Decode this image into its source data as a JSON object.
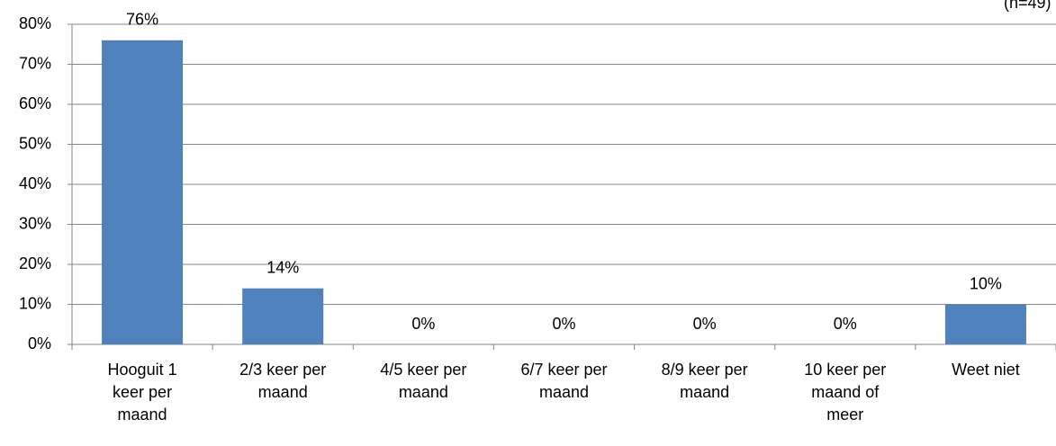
{
  "chart_data": {
    "type": "bar",
    "annotation": "(n=49)",
    "categories": [
      "Hooguit 1\nkeer per\nmaand",
      "2/3 keer per\nmaand",
      "4/5 keer per\nmaand",
      "6/7 keer per\nmaand",
      "8/9 keer per\nmaand",
      "10 keer per\nmaand of\nmeer",
      "Weet niet"
    ],
    "values": [
      76,
      14,
      0,
      0,
      0,
      0,
      10
    ],
    "value_labels": [
      "76%",
      "14%",
      "0%",
      "0%",
      "0%",
      "0%",
      "10%"
    ],
    "color": "#4f81bd",
    "ylim": [
      0,
      80
    ],
    "yticks": [
      {
        "value": 0,
        "label": "0%"
      },
      {
        "value": 10,
        "label": "10%"
      },
      {
        "value": 20,
        "label": "20%"
      },
      {
        "value": 30,
        "label": "30%"
      },
      {
        "value": 40,
        "label": "40%"
      },
      {
        "value": 50,
        "label": "50%"
      },
      {
        "value": 60,
        "label": "60%"
      },
      {
        "value": 70,
        "label": "70%"
      },
      {
        "value": 80,
        "label": "80%"
      }
    ],
    "grid": true
  }
}
